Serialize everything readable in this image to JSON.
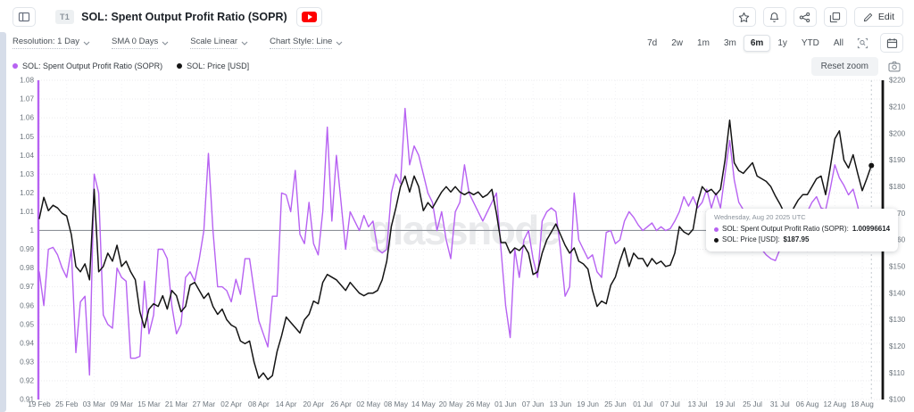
{
  "header": {
    "badge": "T1",
    "title": "SOL: Spent Output Profit Ratio (SOPR)",
    "edit_label": "Edit"
  },
  "toolbar": {
    "dropdowns": [
      {
        "label": "Resolution: 1 Day"
      },
      {
        "label": "SMA 0 Days"
      },
      {
        "label": "Scale Linear"
      },
      {
        "label": "Chart Style: Line"
      }
    ],
    "ranges": [
      "7d",
      "2w",
      "1m",
      "3m",
      "6m",
      "1y",
      "YTD",
      "All"
    ],
    "selected_range": "6m",
    "reset_zoom_label": "Reset zoom"
  },
  "icons": {
    "panel_toggle": "sidebar-panel",
    "youtube": "video-play",
    "star": "favorite",
    "bell": "alert",
    "share": "share-nodes",
    "duplicate": "copy-stack",
    "pencil": "edit",
    "chevron_down": "dropdown-caret",
    "zoom_area": "magnifier-brackets",
    "calendar": "date-picker",
    "camera": "screenshot"
  },
  "legend": [
    {
      "label": "SOL: Spent Output Profit Ratio (SOPR)",
      "color": "#b762f2"
    },
    {
      "label": "SOL: Price [USD]",
      "color": "#141414"
    }
  ],
  "watermark": "glassnode",
  "tooltip": {
    "title": "Wednesday, Aug 20 2025 UTC",
    "rows": [
      {
        "label": "SOL: Spent Output Profit Ratio (SOPR):",
        "value": "1.00996614",
        "color": "#b762f2"
      },
      {
        "label": "SOL: Price [USD]:",
        "value": "$187.95",
        "color": "#141414"
      }
    ]
  },
  "chart_data": {
    "type": "line",
    "title": "SOL: Spent Output Profit Ratio (SOPR)",
    "x_start_date": "2025-02-19",
    "x_end_date": "2025-08-20",
    "x_tick_labels": [
      "19 Feb",
      "25 Feb",
      "03 Mar",
      "09 Mar",
      "15 Mar",
      "21 Mar",
      "27 Mar",
      "02 Apr",
      "08 Apr",
      "14 Apr",
      "20 Apr",
      "26 Apr",
      "02 May",
      "08 May",
      "14 May",
      "20 May",
      "26 May",
      "01 Jun",
      "07 Jun",
      "13 Jun",
      "19 Jun",
      "25 Jun",
      "01 Jul",
      "07 Jul",
      "13 Jul",
      "19 Jul",
      "25 Jul",
      "31 Jul",
      "06 Aug",
      "12 Aug",
      "18 Aug"
    ],
    "x_tick_step_days": 6,
    "left_axis": {
      "min": 0.91,
      "max": 1.08,
      "ticks": [
        "1.08",
        "1.07",
        "1.06",
        "1.05",
        "1.04",
        "1.03",
        "1.02",
        "1.01",
        "1",
        "0.99",
        "0.98",
        "0.97",
        "0.96",
        "0.95",
        "0.94",
        "0.93",
        "0.92",
        "0.91"
      ]
    },
    "right_axis": {
      "min": 100,
      "max": 220,
      "ticks": [
        "$220",
        "$210",
        "$200",
        "$190",
        "$180",
        "$170",
        "$160",
        "$150",
        "$140",
        "$130",
        "$120",
        "$110",
        "$100"
      ]
    },
    "reference_line": {
      "axis": "left",
      "value": 1
    },
    "crosshair_day_index": 182,
    "grid": true,
    "series": [
      {
        "name": "SOL: Spent Output Profit Ratio (SOPR)",
        "axis": "left",
        "color": "#b762f2",
        "values": [
          0.978,
          0.96,
          0.99,
          0.991,
          0.987,
          0.98,
          0.975,
          0.99,
          0.935,
          0.962,
          0.965,
          0.923,
          1.03,
          1.02,
          0.955,
          0.95,
          0.948,
          0.98,
          0.975,
          0.973,
          0.932,
          0.932,
          0.933,
          0.973,
          0.945,
          0.955,
          0.99,
          0.99,
          0.985,
          0.96,
          0.945,
          0.95,
          0.975,
          0.978,
          0.973,
          0.985,
          1.0,
          1.041,
          1.0,
          0.97,
          0.97,
          0.968,
          0.962,
          0.974,
          0.966,
          0.985,
          0.985,
          0.968,
          0.952,
          0.945,
          0.938,
          0.965,
          0.965,
          1.02,
          1.019,
          1.01,
          1.032,
          0.998,
          0.993,
          1.015,
          0.993,
          0.987,
          1.01,
          1.055,
          1.005,
          1.04,
          1.015,
          0.99,
          1.01,
          1.005,
          1.0,
          1.008,
          1.002,
          1.005,
          0.99,
          0.988,
          0.99,
          1.02,
          1.03,
          1.025,
          1.065,
          1.035,
          1.045,
          1.04,
          1.03,
          1.02,
          1.015,
          1.0,
          1.01,
          0.995,
          0.985,
          1.01,
          1.015,
          1.035,
          1.02,
          1.015,
          1.01,
          1.005,
          1.01,
          1.015,
          1.02,
          0.99,
          0.96,
          0.943,
          0.99,
          0.975,
          0.995,
          1.0,
          0.985,
          0.975,
          1.005,
          1.01,
          1.012,
          1.01,
          0.99,
          0.965,
          0.97,
          1.02,
          0.995,
          0.99,
          0.985,
          0.987,
          0.978,
          0.975,
          0.999,
          1.0,
          0.993,
          0.995,
          1.005,
          1.01,
          1.007,
          1.003,
          1.0,
          1.002,
          1.004,
          1.0,
          1.002,
          1.0,
          1.001,
          1.005,
          1.01,
          1.018,
          1.013,
          1.018,
          1.012,
          1.015,
          1.022,
          1.012,
          1.02,
          1.012,
          1.03,
          1.048,
          1.027,
          1.015,
          1.011,
          1.008,
          1.0,
          0.995,
          0.99,
          0.987,
          0.985,
          0.984,
          0.99,
          0.993,
          0.998,
          1.004,
          1.008,
          1.01,
          1.01,
          1.015,
          1.018,
          1.012,
          1.011,
          1.022,
          1.035,
          1.028,
          1.024,
          1.019,
          1.022,
          1.013,
          1.002,
          1.0,
          1.00996614
        ]
      },
      {
        "name": "SOL: Price [USD]",
        "axis": "right",
        "color": "#141414",
        "values": [
          168,
          176,
          171,
          173,
          172,
          170,
          169,
          162,
          150,
          148,
          151,
          145,
          179,
          148,
          150,
          155,
          152,
          158,
          150,
          152,
          148,
          145,
          133,
          127,
          134,
          136,
          135,
          139,
          134,
          141,
          139,
          133,
          135,
          143,
          144,
          141,
          138,
          140,
          135,
          132,
          134,
          130,
          128,
          127,
          122,
          121,
          122,
          114,
          108,
          110,
          107.5,
          109,
          118,
          124,
          131,
          129,
          127,
          125,
          130,
          132,
          137,
          136,
          144,
          147,
          146,
          145,
          143,
          141,
          144,
          142,
          140,
          139,
          140,
          140,
          141,
          145,
          152,
          165,
          172,
          180,
          184,
          178,
          184,
          180,
          171,
          174,
          172,
          175,
          178,
          180,
          178,
          180,
          178,
          177,
          178,
          177,
          178,
          176,
          177,
          179,
          170,
          159,
          159,
          155,
          157,
          156,
          158,
          155,
          147,
          148,
          155,
          160,
          163,
          166,
          162,
          158,
          155,
          157,
          152,
          151,
          149,
          141,
          135,
          137,
          136,
          143,
          146,
          152,
          157,
          150,
          155,
          153,
          153,
          150,
          153,
          151,
          152,
          150,
          150.5,
          155,
          165,
          163,
          162,
          164,
          174,
          180,
          178,
          179,
          177,
          179,
          190,
          205,
          189,
          186,
          185,
          187,
          189,
          184,
          183,
          182,
          180,
          176.5,
          173.5,
          170,
          168,
          172,
          175,
          177,
          177,
          180,
          183,
          184,
          177,
          187,
          198,
          201,
          190,
          187,
          192,
          185,
          178.5,
          183,
          187.95
        ]
      }
    ]
  }
}
